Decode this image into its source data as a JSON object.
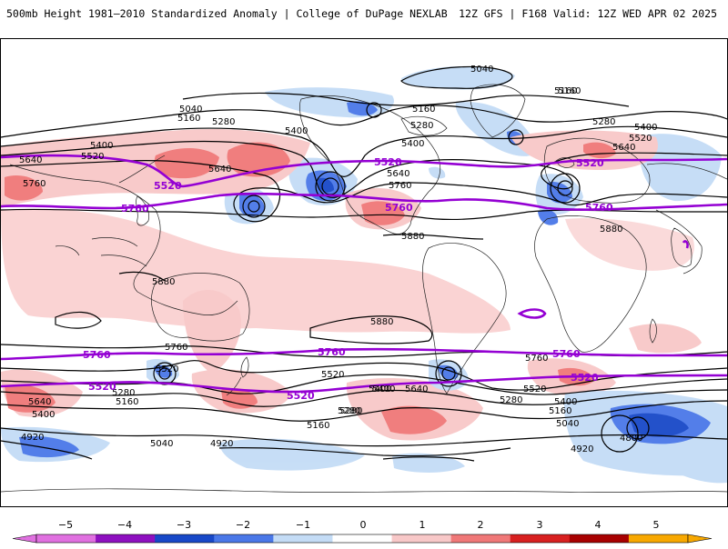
{
  "header": {
    "title": "500mb Height 1981–2010 Standardized Anomaly | College of DuPage NEXLAB",
    "run": "12Z GFS | F168 Valid: 12Z WED APR 02 2025"
  },
  "colors": {
    "neg5": "#e040e0",
    "neg4": "#8e10c0",
    "neg3": "#1848c8",
    "neg2": "#4a78e8",
    "neg1": "#c4dcf6",
    "pos1": "#f8c8c8",
    "pos2": "#f07878",
    "pos3": "#d82020",
    "pos4": "#a80000",
    "pos5": "#f8a800",
    "contour": "#000000",
    "highlight": "#9400d3"
  },
  "colorbar": {
    "ticks": [
      "−5",
      "−4",
      "−3",
      "−2",
      "−1",
      "0",
      "1",
      "2",
      "3",
      "4",
      "5"
    ],
    "colors": [
      "#e070e0",
      "#8e10c0",
      "#1848c8",
      "#4a78e8",
      "#c4dcf6",
      "#ffffff",
      "#f8c8c8",
      "#f07878",
      "#d82020",
      "#a80000",
      "#f8a800"
    ]
  },
  "map": {
    "projection": "global-cylindrical",
    "contour_labels": [
      "5040",
      "5160",
      "5040",
      "5160",
      "5280",
      "5400",
      "5400",
      "5520",
      "5640",
      "5640",
      "5760",
      "5160",
      "5280",
      "5400",
      "5640",
      "5760",
      "5880",
      "5160",
      "5280",
      "5400",
      "5520",
      "5640",
      "5880",
      "5880",
      "5880",
      "5760",
      "5520",
      "5640",
      "5400",
      "5280",
      "5160",
      "4920",
      "5040",
      "4920",
      "5280",
      "5400",
      "5640",
      "5760",
      "5520",
      "5400",
      "5280",
      "5160",
      "5040",
      "4920",
      "4800",
      "5160",
      "5280",
      "5400",
      "5520"
    ],
    "highlight_labels": [
      "5520",
      "5760",
      "5520",
      "5760",
      "5520",
      "5760",
      "5760",
      "5760",
      "5520",
      "5520",
      "5760",
      "5520"
    ]
  }
}
